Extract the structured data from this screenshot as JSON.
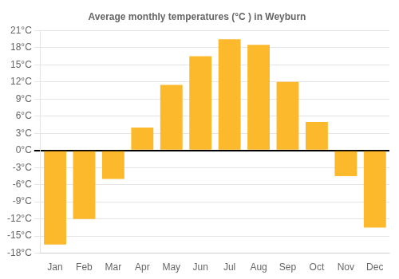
{
  "chart_data": {
    "type": "bar",
    "title": "Average monthly temperatures (°C ) in Weyburn",
    "categories": [
      "Jan",
      "Feb",
      "Mar",
      "Apr",
      "May",
      "Jun",
      "Jul",
      "Aug",
      "Sep",
      "Oct",
      "Nov",
      "Dec"
    ],
    "values": [
      -16.5,
      -12.0,
      -5.0,
      4.0,
      11.5,
      16.5,
      19.5,
      18.5,
      12.0,
      5.0,
      -4.5,
      -13.5
    ],
    "color": "#FDB92C",
    "ylim": [
      -18,
      21
    ],
    "yticks": [
      {
        "value": -18,
        "label": "-18°C"
      },
      {
        "value": -15,
        "label": "-15°C"
      },
      {
        "value": -12,
        "label": "-12°C"
      },
      {
        "value": -9,
        "label": "-9°C"
      },
      {
        "value": -6,
        "label": "-6°C"
      },
      {
        "value": -3,
        "label": "-3°C"
      },
      {
        "value": 0,
        "label": "0°C"
      },
      {
        "value": 3,
        "label": "3°C"
      },
      {
        "value": 6,
        "label": "6°C"
      },
      {
        "value": 9,
        "label": "9°C"
      },
      {
        "value": 12,
        "label": "12°C"
      },
      {
        "value": 15,
        "label": "15°C"
      },
      {
        "value": 18,
        "label": "18°C"
      },
      {
        "value": 21,
        "label": "21°C"
      }
    ],
    "grid": true
  }
}
